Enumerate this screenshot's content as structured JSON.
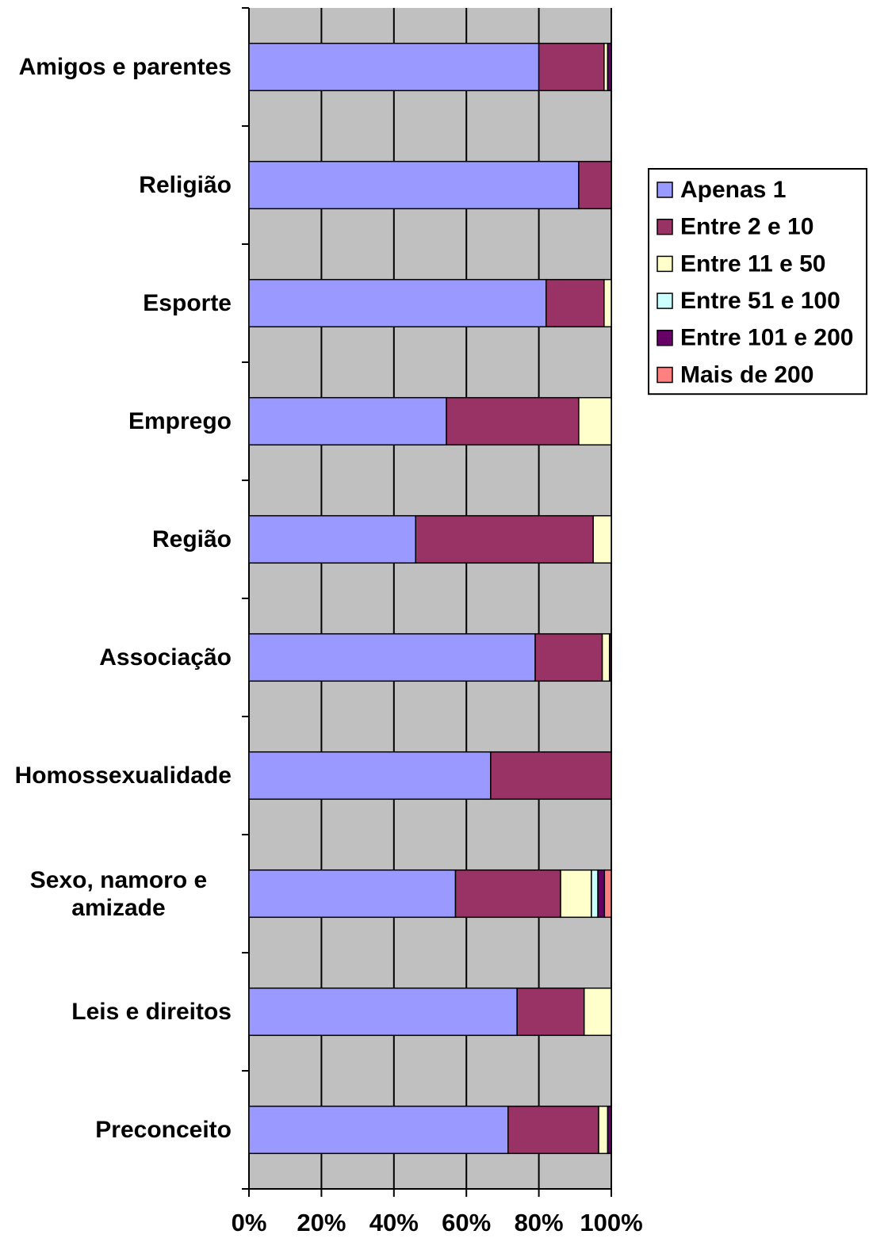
{
  "chart_data": {
    "type": "stacked-bar-horizontal",
    "categories": [
      "Amigos e parentes",
      "Religião",
      "Esporte",
      "Emprego",
      "Região",
      "Associação",
      "Homossexualidade",
      "Sexo, namoro e amizade",
      "Leis e direitos",
      "Preconceito"
    ],
    "series": [
      {
        "name": "Apenas 1",
        "color": "#9999ff",
        "values": [
          80,
          91,
          82,
          54.5,
          46,
          79,
          66.7,
          57,
          74,
          71.5
        ]
      },
      {
        "name": "Entre 2 e 10",
        "color": "#993366",
        "values": [
          18,
          9,
          16,
          36.5,
          49,
          18.5,
          33.3,
          29,
          18.5,
          25
        ]
      },
      {
        "name": "Entre 11 e 50",
        "color": "#ffffcc",
        "values": [
          1,
          0,
          2,
          9,
          5,
          2,
          0,
          8.5,
          7.5,
          2.5
        ]
      },
      {
        "name": "Entre 51 e 100",
        "color": "#ccffff",
        "values": [
          0,
          0,
          0,
          0,
          0,
          0,
          0,
          1.8,
          0,
          0
        ]
      },
      {
        "name": "Entre 101 e 200",
        "color": "#660066",
        "values": [
          1,
          0,
          0,
          0,
          0,
          0.5,
          0,
          1.8,
          0,
          1
        ]
      },
      {
        "name": "Mais de 200",
        "color": "#ff8080",
        "values": [
          0,
          0,
          0,
          0,
          0,
          0,
          0,
          1.9,
          0,
          0
        ]
      }
    ],
    "xlim": [
      0,
      100
    ],
    "xticks": [
      {
        "value": 0,
        "label": "0%"
      },
      {
        "value": 20,
        "label": "20%"
      },
      {
        "value": 40,
        "label": "40%"
      },
      {
        "value": 60,
        "label": "60%"
      },
      {
        "value": 80,
        "label": "80%"
      },
      {
        "value": 100,
        "label": "100%"
      }
    ],
    "grid": true,
    "legend": "right"
  }
}
